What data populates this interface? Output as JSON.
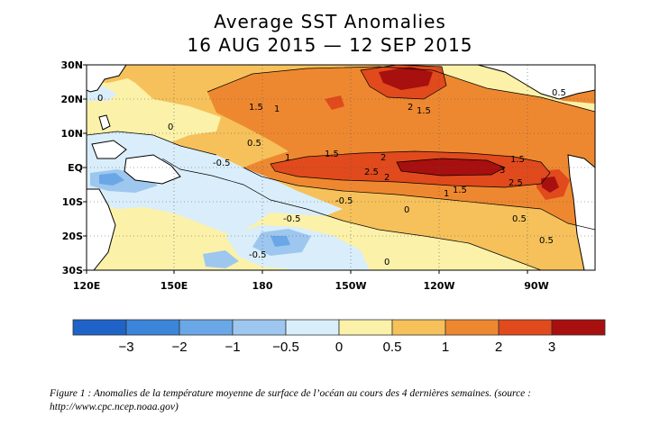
{
  "title": {
    "line1": "Average SST Anomalies",
    "line2": "16 AUG 2015 — 12 SEP 2015"
  },
  "axes": {
    "lat_labels": [
      "30N",
      "20N",
      "10N",
      "EQ",
      "10S",
      "20S",
      "30S"
    ],
    "lon_labels": [
      "120E",
      "150E",
      "180",
      "150W",
      "120W",
      "90W"
    ]
  },
  "contour_labels": [
    "0",
    "1.5",
    "1",
    "2",
    "1.5",
    "0.5",
    "1",
    "1.5",
    "2",
    "-0.5",
    "2.5",
    "2",
    "3",
    "1.5",
    "2.5",
    "1",
    "1.5",
    "-0.5",
    "0.5",
    "0.5",
    "0",
    "0",
    "-0.5",
    "0",
    "0.5",
    "-0.5"
  ],
  "colorbar": {
    "ticks": [
      "−3",
      "−2",
      "−1",
      "−0.5",
      "0",
      "0.5",
      "1",
      "2",
      "3"
    ],
    "colors": [
      "#1f63c8",
      "#3b86db",
      "#6aa7e6",
      "#9ec7ef",
      "#d9eefa",
      "#fbf1a9",
      "#f6c15a",
      "#ee8830",
      "#e04a1c",
      "#a80f0f"
    ]
  },
  "caption": {
    "line1": "Figure 1 : Anomalies de la température moyenne de surface de l’océan au cours des 4 dernières semaines. (source :",
    "line2": "http://www.cpc.ncep.noaa.gov)"
  }
}
